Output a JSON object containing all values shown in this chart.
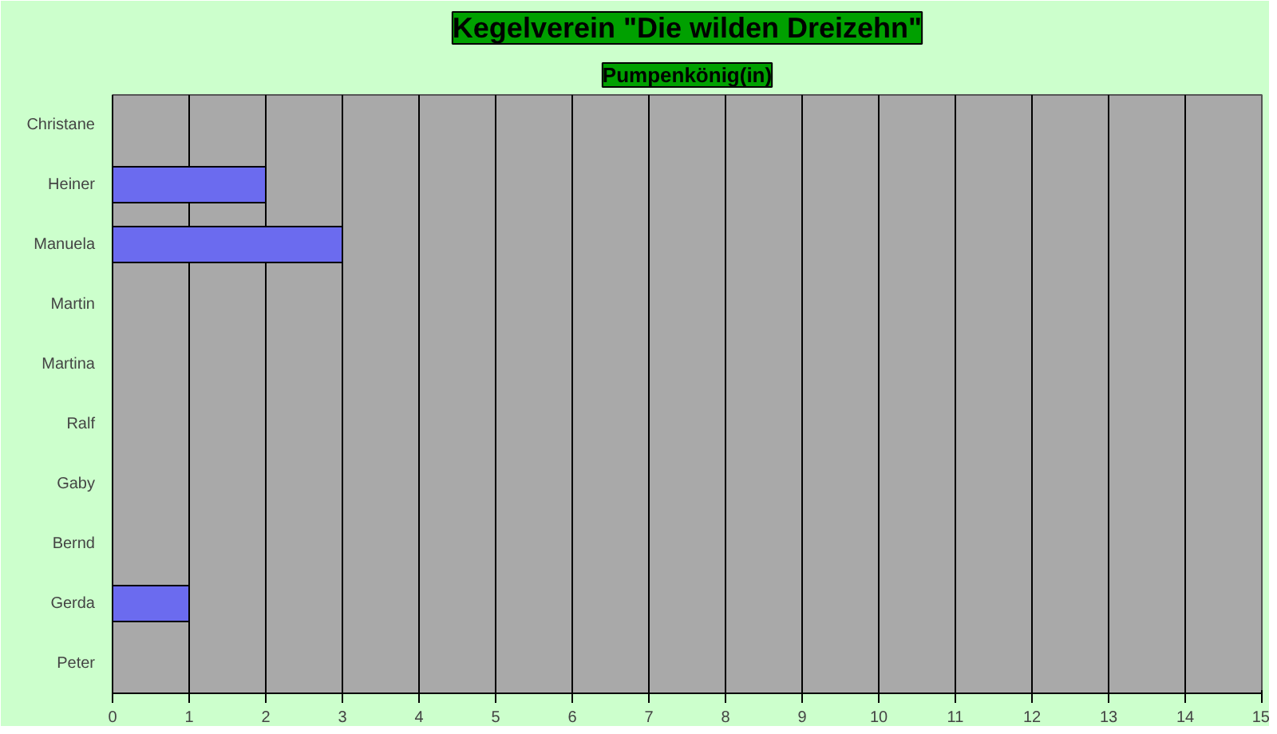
{
  "chart_data": {
    "type": "bar",
    "orientation": "horizontal",
    "title": "Kegelverein \"Die wilden Dreizehn\"",
    "subtitle": "Pumpenkönig(in)",
    "categories": [
      "Christane",
      "Heiner",
      "Manuela",
      "Martin",
      "Martina",
      "Ralf",
      "Gaby",
      "Bernd",
      "Gerda",
      "Peter"
    ],
    "values": [
      0,
      2,
      3,
      0,
      0,
      0,
      0,
      0,
      1,
      0
    ],
    "color": "#6b6bef",
    "xlim": [
      0,
      15
    ],
    "xticks": [
      0,
      1,
      2,
      3,
      4,
      5,
      6,
      7,
      8,
      9,
      10,
      11,
      12,
      13,
      14,
      15
    ],
    "grid": "x"
  }
}
